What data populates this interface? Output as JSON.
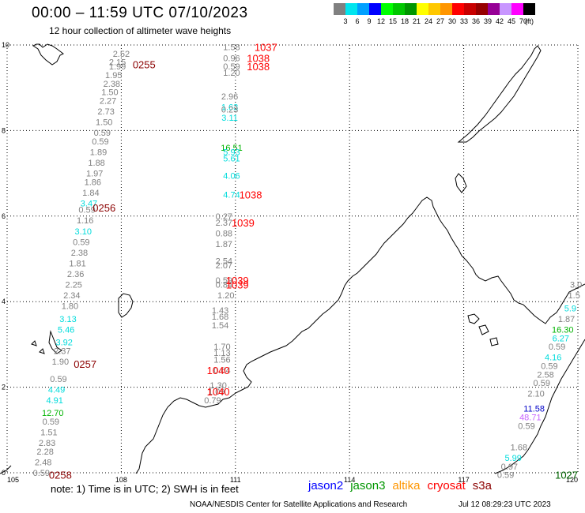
{
  "header": {
    "title": "00:00 – 11:59 UTC 07/10/2023",
    "subtitle": "12 hour collection of altimeter wave heights"
  },
  "legend": {
    "ticks": [
      "3",
      "6",
      "9",
      "12",
      "15",
      "18",
      "21",
      "24",
      "27",
      "30",
      "33",
      "36",
      "39",
      "42",
      "45",
      "70",
      "(ft)"
    ],
    "colors": [
      "#808080",
      "#00e5ee",
      "#00a0ff",
      "#0000ff",
      "#00ff00",
      "#00c800",
      "#009600",
      "#ffff00",
      "#ffc800",
      "#ff9600",
      "#ff0000",
      "#c80000",
      "#960000",
      "#960096",
      "#c896ff",
      "#ff00ff",
      "#000000"
    ]
  },
  "map": {
    "lon_range": [
      105,
      120
    ],
    "lat_range": [
      0,
      10
    ],
    "x_ticks": [
      "105",
      "108",
      "111",
      "114",
      "117",
      "120"
    ],
    "y_ticks": [
      "0",
      "2",
      "4",
      "6",
      "8",
      "10"
    ],
    "colors": {
      "grid": "#000000",
      "coast": "#000000",
      "swh_gray": "#808080",
      "swh_cyan": "#00dcdc",
      "swh_green": "#00b400",
      "swh_blue": "#0000c8",
      "swh_violet": "#c864ff",
      "time_red": "#ff0000",
      "time_dark": "#8b0000",
      "time_green": "#006400"
    },
    "swh": [
      {
        "lon": 108.0,
        "lat": 9.8,
        "v": "2.52",
        "c": "swh_gray"
      },
      {
        "lon": 107.9,
        "lat": 9.6,
        "v": "2.15",
        "c": "swh_gray"
      },
      {
        "lon": 107.9,
        "lat": 9.5,
        "v": "1.99",
        "c": "swh_gray"
      },
      {
        "lon": 107.8,
        "lat": 9.3,
        "v": "1.95",
        "c": "swh_gray"
      },
      {
        "lon": 107.75,
        "lat": 9.1,
        "v": "2.38",
        "c": "swh_gray"
      },
      {
        "lon": 107.7,
        "lat": 8.9,
        "v": "1.50",
        "c": "swh_gray"
      },
      {
        "lon": 107.65,
        "lat": 8.7,
        "v": "2.27",
        "c": "swh_gray"
      },
      {
        "lon": 107.6,
        "lat": 8.45,
        "v": "2.73",
        "c": "swh_gray"
      },
      {
        "lon": 107.55,
        "lat": 8.2,
        "v": "1.50",
        "c": "swh_gray"
      },
      {
        "lon": 107.5,
        "lat": 7.95,
        "v": "0.59",
        "c": "swh_gray"
      },
      {
        "lon": 107.45,
        "lat": 7.75,
        "v": "0.59",
        "c": "swh_gray"
      },
      {
        "lon": 107.4,
        "lat": 7.5,
        "v": "1.89",
        "c": "swh_gray"
      },
      {
        "lon": 107.35,
        "lat": 7.25,
        "v": "1.88",
        "c": "swh_gray"
      },
      {
        "lon": 107.3,
        "lat": 7.0,
        "v": "1.97",
        "c": "swh_gray"
      },
      {
        "lon": 107.25,
        "lat": 6.8,
        "v": "1.86",
        "c": "swh_gray"
      },
      {
        "lon": 107.2,
        "lat": 6.55,
        "v": "1.84",
        "c": "swh_gray"
      },
      {
        "lon": 107.15,
        "lat": 6.3,
        "v": "3.47",
        "c": "swh_cyan"
      },
      {
        "lon": 107.1,
        "lat": 6.15,
        "v": "0.59",
        "c": "swh_gray"
      },
      {
        "lon": 107.05,
        "lat": 5.9,
        "v": "1.16",
        "c": "swh_gray"
      },
      {
        "lon": 107.0,
        "lat": 5.65,
        "v": "3.10",
        "c": "swh_cyan"
      },
      {
        "lon": 106.95,
        "lat": 5.4,
        "v": "0.59",
        "c": "swh_gray"
      },
      {
        "lon": 106.9,
        "lat": 5.15,
        "v": "2.38",
        "c": "swh_gray"
      },
      {
        "lon": 106.85,
        "lat": 4.9,
        "v": "1.81",
        "c": "swh_gray"
      },
      {
        "lon": 106.8,
        "lat": 4.65,
        "v": "2.36",
        "c": "swh_gray"
      },
      {
        "lon": 106.75,
        "lat": 4.4,
        "v": "2.25",
        "c": "swh_gray"
      },
      {
        "lon": 106.7,
        "lat": 4.15,
        "v": "2.34",
        "c": "swh_gray"
      },
      {
        "lon": 106.65,
        "lat": 3.9,
        "v": "1.80",
        "c": "swh_gray"
      },
      {
        "lon": 106.6,
        "lat": 3.6,
        "v": "3.13",
        "c": "swh_cyan"
      },
      {
        "lon": 106.55,
        "lat": 3.35,
        "v": "5.46",
        "c": "swh_cyan"
      },
      {
        "lon": 106.5,
        "lat": 3.05,
        "v": "3.92",
        "c": "swh_cyan"
      },
      {
        "lon": 106.45,
        "lat": 2.85,
        "v": "2.37",
        "c": "swh_gray"
      },
      {
        "lon": 106.4,
        "lat": 2.6,
        "v": "1.90",
        "c": "swh_gray"
      },
      {
        "lon": 106.35,
        "lat": 2.2,
        "v": "0.59",
        "c": "swh_gray"
      },
      {
        "lon": 106.3,
        "lat": 1.95,
        "v": "4.49",
        "c": "swh_cyan"
      },
      {
        "lon": 106.25,
        "lat": 1.7,
        "v": "4.91",
        "c": "swh_cyan"
      },
      {
        "lon": 106.2,
        "lat": 1.4,
        "v": "12.70",
        "c": "swh_green"
      },
      {
        "lon": 106.15,
        "lat": 1.2,
        "v": "0.59",
        "c": "swh_gray"
      },
      {
        "lon": 106.1,
        "lat": 0.95,
        "v": "1.51",
        "c": "swh_gray"
      },
      {
        "lon": 106.05,
        "lat": 0.7,
        "v": "2.83",
        "c": "swh_gray"
      },
      {
        "lon": 106.0,
        "lat": 0.5,
        "v": "2.28",
        "c": "swh_gray"
      },
      {
        "lon": 105.95,
        "lat": 0.25,
        "v": "2.48",
        "c": "swh_gray"
      },
      {
        "lon": 105.9,
        "lat": 0.0,
        "v": "0.59",
        "c": "swh_gray"
      },
      {
        "lon": 110.9,
        "lat": 9.95,
        "v": "1.58",
        "c": "swh_gray"
      },
      {
        "lon": 110.9,
        "lat": 9.7,
        "v": "0.96",
        "c": "swh_gray"
      },
      {
        "lon": 110.9,
        "lat": 9.5,
        "v": "0.59",
        "c": "swh_gray"
      },
      {
        "lon": 110.9,
        "lat": 9.35,
        "v": "1.20",
        "c": "swh_gray"
      },
      {
        "lon": 110.85,
        "lat": 8.8,
        "v": "2.96",
        "c": "swh_gray"
      },
      {
        "lon": 110.85,
        "lat": 8.55,
        "v": "1.63",
        "c": "swh_cyan"
      },
      {
        "lon": 110.85,
        "lat": 8.5,
        "v": "0.23",
        "c": "swh_gray"
      },
      {
        "lon": 110.85,
        "lat": 8.3,
        "v": "3.11",
        "c": "swh_cyan"
      },
      {
        "lon": 110.9,
        "lat": 7.6,
        "v": "16.51",
        "c": "swh_green"
      },
      {
        "lon": 110.9,
        "lat": 7.5,
        "v": "5.93",
        "c": "swh_cyan"
      },
      {
        "lon": 110.9,
        "lat": 7.35,
        "v": "5.61",
        "c": "swh_cyan"
      },
      {
        "lon": 110.9,
        "lat": 6.95,
        "v": "4.06",
        "c": "swh_cyan"
      },
      {
        "lon": 110.9,
        "lat": 6.5,
        "v": "4.74",
        "c": "swh_cyan"
      },
      {
        "lon": 110.7,
        "lat": 6.0,
        "v": "0.27",
        "c": "swh_gray"
      },
      {
        "lon": 110.7,
        "lat": 5.85,
        "v": "2.37",
        "c": "swh_gray"
      },
      {
        "lon": 110.7,
        "lat": 5.6,
        "v": "0.88",
        "c": "swh_gray"
      },
      {
        "lon": 110.7,
        "lat": 5.35,
        "v": "1.87",
        "c": "swh_gray"
      },
      {
        "lon": 110.7,
        "lat": 4.95,
        "v": "2.54",
        "c": "swh_gray"
      },
      {
        "lon": 110.7,
        "lat": 4.85,
        "v": "2.07",
        "c": "swh_gray"
      },
      {
        "lon": 110.7,
        "lat": 4.5,
        "v": "0.59",
        "c": "swh_gray"
      },
      {
        "lon": 110.7,
        "lat": 4.4,
        "v": "0.84",
        "c": "swh_gray"
      },
      {
        "lon": 110.75,
        "lat": 4.15,
        "v": "1.20",
        "c": "swh_gray"
      },
      {
        "lon": 110.6,
        "lat": 3.8,
        "v": "1.43",
        "c": "swh_gray"
      },
      {
        "lon": 110.6,
        "lat": 3.65,
        "v": "1.68",
        "c": "swh_gray"
      },
      {
        "lon": 110.6,
        "lat": 3.45,
        "v": "1.54",
        "c": "swh_gray"
      },
      {
        "lon": 110.65,
        "lat": 2.95,
        "v": "1.70",
        "c": "swh_gray"
      },
      {
        "lon": 110.65,
        "lat": 2.8,
        "v": "1.13",
        "c": "swh_gray"
      },
      {
        "lon": 110.65,
        "lat": 2.65,
        "v": "1.56",
        "c": "swh_gray"
      },
      {
        "lon": 110.65,
        "lat": 2.4,
        "v": "0.64",
        "c": "swh_gray"
      },
      {
        "lon": 110.55,
        "lat": 2.05,
        "v": "1.30",
        "c": "swh_gray"
      },
      {
        "lon": 110.5,
        "lat": 1.9,
        "v": "1.09",
        "c": "swh_gray"
      },
      {
        "lon": 110.4,
        "lat": 1.7,
        "v": "0.79",
        "c": "swh_gray"
      },
      {
        "lon": 119.95,
        "lat": 4.4,
        "v": "3.0",
        "c": "swh_gray"
      },
      {
        "lon": 119.9,
        "lat": 4.15,
        "v": "1.5",
        "c": "swh_gray"
      },
      {
        "lon": 119.8,
        "lat": 3.85,
        "v": "5.9",
        "c": "swh_cyan"
      },
      {
        "lon": 119.7,
        "lat": 3.6,
        "v": "1.87",
        "c": "swh_gray"
      },
      {
        "lon": 119.6,
        "lat": 3.35,
        "v": "16.30",
        "c": "swh_green"
      },
      {
        "lon": 119.55,
        "lat": 3.15,
        "v": "6.27",
        "c": "swh_cyan"
      },
      {
        "lon": 119.45,
        "lat": 2.95,
        "v": "0.59",
        "c": "swh_gray"
      },
      {
        "lon": 119.35,
        "lat": 2.7,
        "v": "4.16",
        "c": "swh_cyan"
      },
      {
        "lon": 119.25,
        "lat": 2.5,
        "v": "0.59",
        "c": "swh_gray"
      },
      {
        "lon": 119.15,
        "lat": 2.3,
        "v": "2.58",
        "c": "swh_gray"
      },
      {
        "lon": 119.05,
        "lat": 2.1,
        "v": "0.59",
        "c": "swh_gray"
      },
      {
        "lon": 118.9,
        "lat": 1.85,
        "v": "2.10",
        "c": "swh_gray"
      },
      {
        "lon": 118.85,
        "lat": 1.5,
        "v": "11.58",
        "c": "swh_blue"
      },
      {
        "lon": 118.75,
        "lat": 1.3,
        "v": "48.71",
        "c": "swh_violet"
      },
      {
        "lon": 118.65,
        "lat": 1.1,
        "v": "0.59",
        "c": "swh_gray"
      },
      {
        "lon": 118.45,
        "lat": 0.6,
        "v": "1.68",
        "c": "swh_gray"
      },
      {
        "lon": 118.3,
        "lat": 0.35,
        "v": "5.99",
        "c": "swh_cyan"
      },
      {
        "lon": 118.2,
        "lat": 0.15,
        "v": "0.97",
        "c": "swh_gray"
      },
      {
        "lon": 118.1,
        "lat": -0.05,
        "v": "0.59",
        "c": "swh_gray"
      }
    ],
    "times": [
      {
        "lon": 108.6,
        "lat": 9.55,
        "v": "0255",
        "c": "time_dark"
      },
      {
        "lon": 107.55,
        "lat": 6.2,
        "v": "0256",
        "c": "time_dark"
      },
      {
        "lon": 107.05,
        "lat": 2.55,
        "v": "0257",
        "c": "time_dark"
      },
      {
        "lon": 106.4,
        "lat": -0.05,
        "v": "0258",
        "c": "time_dark"
      },
      {
        "lon": 111.8,
        "lat": 9.95,
        "v": "1037",
        "c": "time_red"
      },
      {
        "lon": 111.6,
        "lat": 9.7,
        "v": "1038",
        "c": "time_red"
      },
      {
        "lon": 111.6,
        "lat": 9.5,
        "v": "1038",
        "c": "time_red"
      },
      {
        "lon": 111.4,
        "lat": 6.5,
        "v": "1038",
        "c": "time_red"
      },
      {
        "lon": 111.2,
        "lat": 5.85,
        "v": "1039",
        "c": "time_red"
      },
      {
        "lon": 111.05,
        "lat": 4.5,
        "v": "1039",
        "c": "time_red"
      },
      {
        "lon": 111.05,
        "lat": 4.4,
        "v": "1039",
        "c": "time_red"
      },
      {
        "lon": 110.55,
        "lat": 2.4,
        "v": "1040",
        "c": "time_red"
      },
      {
        "lon": 110.55,
        "lat": 1.9,
        "v": "1040",
        "c": "time_red"
      },
      {
        "lon": 119.7,
        "lat": -0.05,
        "v": "1027",
        "c": "time_green"
      }
    ]
  },
  "footer": {
    "note": "note:  1) Time is in UTC;  2) SWH is in feet",
    "missions": [
      {
        "label": "jason2",
        "color": "#0000ff"
      },
      {
        "label": "jason3",
        "color": "#009600"
      },
      {
        "label": "altika",
        "color": "#ff9600"
      },
      {
        "label": "cryosat",
        "color": "#ff0000"
      },
      {
        "label": "s3a",
        "color": "#8b0000"
      }
    ],
    "credit": "NOAA/NESDIS Center for Satellite Applications and Research",
    "timestamp": "Jul 12 08:29:23 UTC 2023"
  }
}
